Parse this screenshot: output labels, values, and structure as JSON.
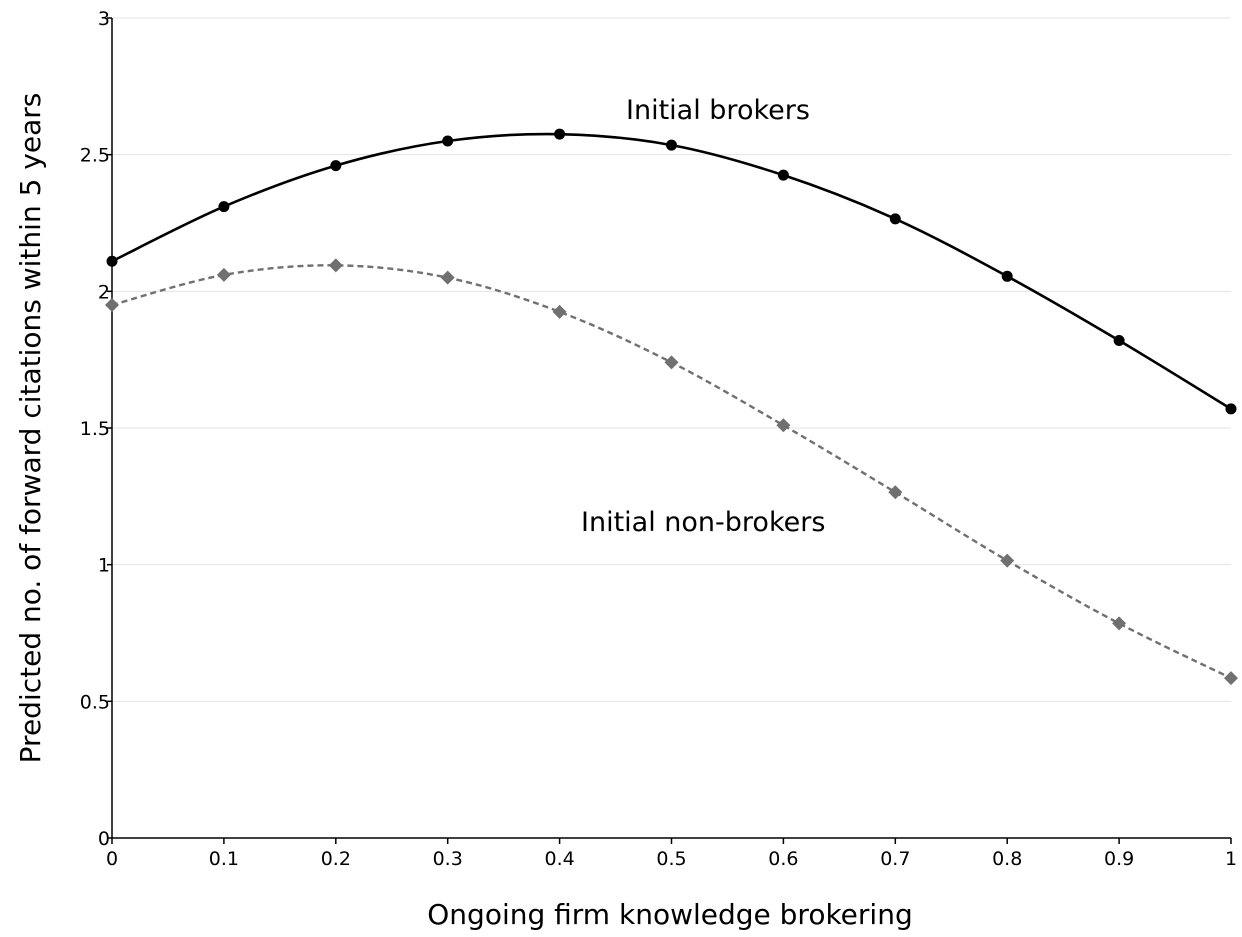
{
  "chart_data": {
    "type": "line",
    "xlabel": "Ongoing firm knowledge brokering",
    "ylabel": "Predicted no. of forward citations within 5 years",
    "xlim": [
      0,
      1
    ],
    "ylim": [
      0,
      3
    ],
    "x_ticks": [
      "0",
      "0.1",
      "0.2",
      "0.3",
      "0.4",
      "0.5",
      "0.6",
      "0.7",
      "0.8",
      "0.9",
      "1"
    ],
    "y_ticks": [
      "0",
      "0.5",
      "1",
      "1.5",
      "2",
      "2.5",
      "3"
    ],
    "grid": "horizontal",
    "x": [
      0,
      0.1,
      0.2,
      0.3,
      0.4,
      0.5,
      0.6,
      0.7,
      0.8,
      0.9,
      1.0
    ],
    "series": [
      {
        "name": "Initial brokers",
        "values": [
          2.11,
          2.31,
          2.46,
          2.55,
          2.575,
          2.535,
          2.425,
          2.265,
          2.055,
          1.82,
          1.57
        ],
        "color": "#000000",
        "line_style": "solid",
        "marker": "circle"
      },
      {
        "name": "Initial non-brokers",
        "values": [
          1.95,
          2.06,
          2.095,
          2.05,
          1.925,
          1.74,
          1.51,
          1.265,
          1.015,
          0.785,
          0.585
        ],
        "color": "#707070",
        "line_style": "dashed",
        "marker": "diamond"
      }
    ]
  }
}
